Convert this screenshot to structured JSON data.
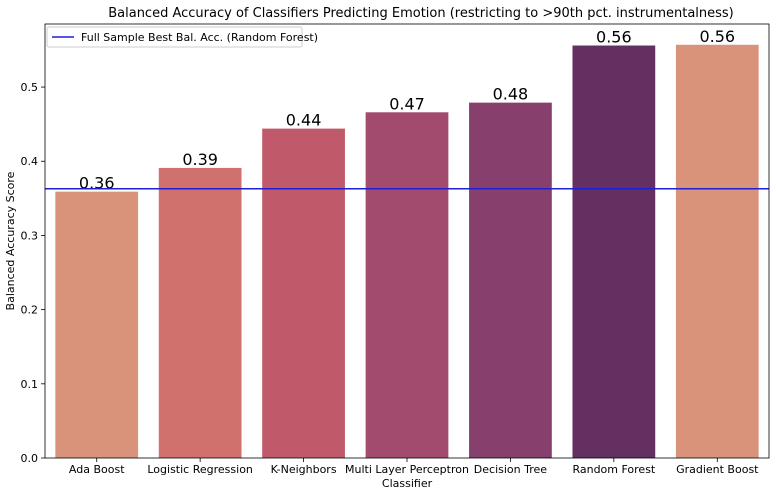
{
  "chart_data": {
    "type": "bar",
    "title": "Balanced Accuracy of Classifiers Predicting Emotion (restricting to >90th pct. instrumentalness)",
    "xlabel": "Classifier",
    "ylabel": "Balanced Accuracy Score",
    "categories": [
      "Ada Boost",
      "Logistic Regression",
      "K-Neighbors",
      "Multi Layer Perceptron",
      "Decision Tree",
      "Random Forest",
      "Gradient Boost"
    ],
    "values": [
      0.359,
      0.391,
      0.444,
      0.466,
      0.479,
      0.556,
      0.557
    ],
    "value_labels": [
      "0.36",
      "0.39",
      "0.44",
      "0.47",
      "0.48",
      "0.56",
      "0.56"
    ],
    "bar_colors": [
      "#d9937a",
      "#d0716d",
      "#c05a6a",
      "#a24b6f",
      "#873f6d",
      "#633061",
      "#d9937a"
    ],
    "ylim": [
      0,
      0.585
    ],
    "yticks": [
      0.0,
      0.1,
      0.2,
      0.3,
      0.4,
      0.5
    ],
    "ytick_labels": [
      "0.0",
      "0.1",
      "0.2",
      "0.3",
      "0.4",
      "0.5"
    ],
    "reference_line": {
      "value": 0.363,
      "label": "Full Sample Best Bal. Acc. (Random Forest)",
      "color": "#1f1fd6"
    },
    "legend_position": "upper-left",
    "grid": false
  }
}
